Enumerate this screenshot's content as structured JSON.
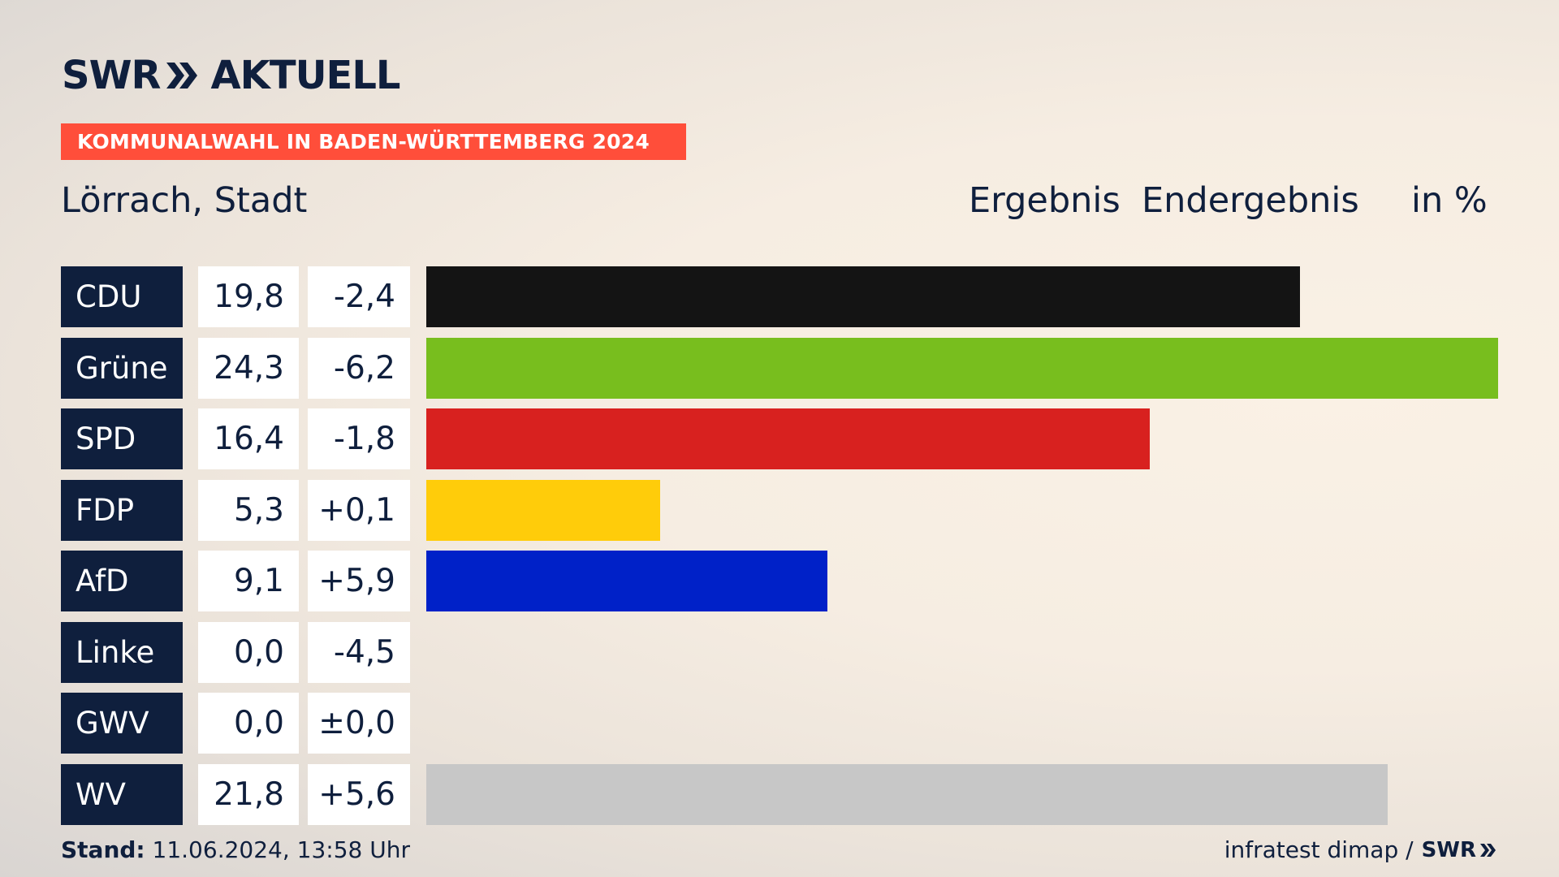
{
  "brand": {
    "logo_text_1": "SWR",
    "logo_text_2": "AKTUELL",
    "footer_logo": "SWR"
  },
  "banner": "KOMMUNALWAHL IN BADEN-WÜRTTEMBERG 2024",
  "place": "Lörrach, Stadt",
  "header": {
    "ergebnis": "Ergebnis",
    "endergebnis": "Endergebnis",
    "unit": "in %"
  },
  "colors": {
    "brand_dark": "#0f1f3d",
    "banner_red": "#ff4e3a"
  },
  "chart_data": {
    "type": "bar",
    "orientation": "horizontal",
    "categories": [
      "CDU",
      "Grüne",
      "SPD",
      "FDP",
      "AfD",
      "Linke",
      "GWV",
      "WV"
    ],
    "values": [
      19.8,
      24.3,
      16.4,
      5.3,
      9.1,
      0.0,
      0.0,
      21.8
    ],
    "value_labels": [
      "19,8",
      "24,3",
      "16,4",
      "5,3",
      "9,1",
      "0,0",
      "0,0",
      "21,8"
    ],
    "diff_labels": [
      "-2,4",
      "-6,2",
      "-1,8",
      "+0,1",
      "+5,9",
      "-4,5",
      "±0,0",
      "+5,6"
    ],
    "diffs": [
      -2.4,
      -6.2,
      -1.8,
      0.1,
      5.9,
      -4.5,
      0.0,
      5.6
    ],
    "colors": [
      "#141414",
      "#78be1e",
      "#d8211f",
      "#ffcc0a",
      "#0021c8",
      "#b5006f",
      "#888888",
      "#c7c7c7"
    ],
    "xlim": [
      0,
      24.3
    ],
    "grid": false,
    "legend": "none"
  },
  "footer": {
    "stand_label": "Stand:",
    "stand_value": "11.06.2024, 13:58 Uhr",
    "source": "infratest dimap /"
  }
}
